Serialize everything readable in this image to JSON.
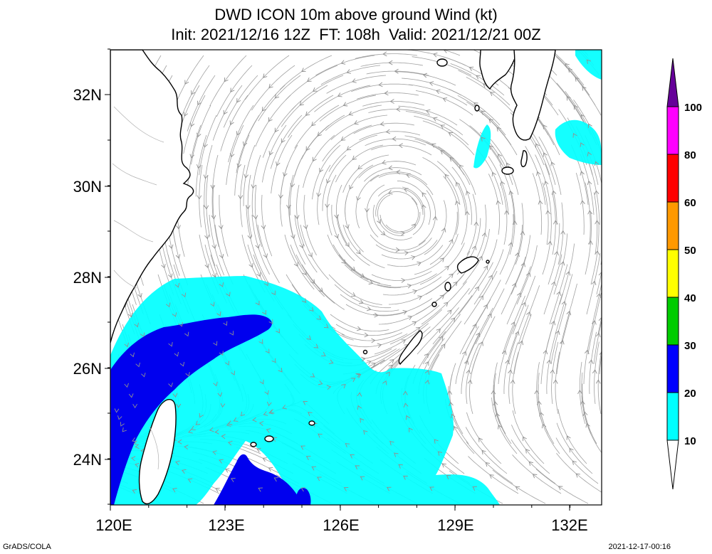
{
  "title_line1": "DWD ICON 10m above ground Wind (kt)",
  "title_line2": "Init: 2021/12/16 12Z  FT: 108h  Valid: 2021/12/21 00Z",
  "y_ticks": [
    "32N",
    "30N",
    "28N",
    "26N",
    "24N"
  ],
  "x_ticks": [
    "120E",
    "123E",
    "126E",
    "129E",
    "132E"
  ],
  "colorbar": {
    "labels": [
      "10",
      "20",
      "30",
      "40",
      "50",
      "60",
      "80",
      "100"
    ],
    "colors": [
      "#ffffff",
      "#00ffff",
      "#0000ff",
      "#00cc00",
      "#ffff00",
      "#ff9900",
      "#ff0000",
      "#ff00ff",
      "#660099"
    ]
  },
  "colors": {
    "band_10_20": "#00ffff",
    "band_20_30": "#0000ee",
    "streamline": "#a0a0a0",
    "coast": "#000000"
  },
  "footer_left": "GrADS/COLA",
  "footer_right": "2021-12-17-00:16"
}
